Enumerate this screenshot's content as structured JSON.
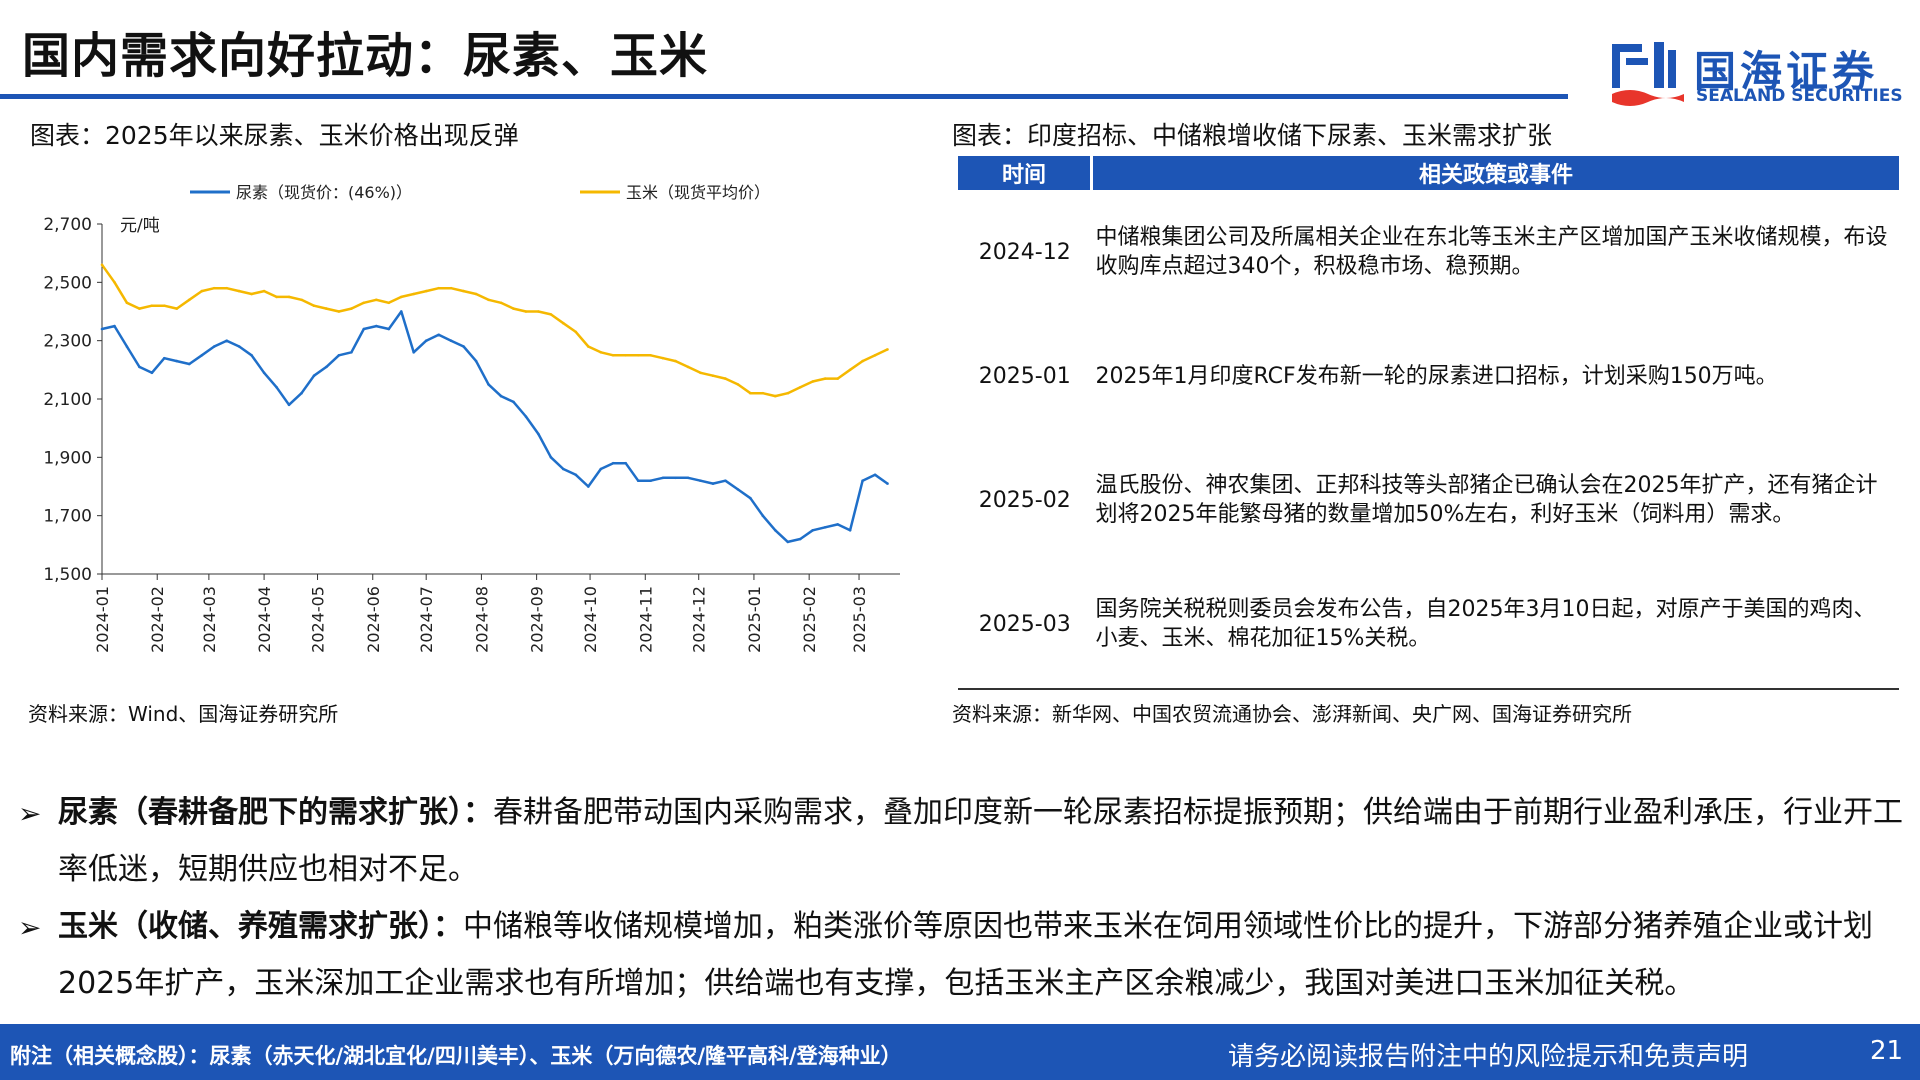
{
  "header": {
    "title": "国内需求向好拉动：尿素、玉米",
    "logo_cn": "国海证券",
    "logo_en": "SEALAND SECURITIES"
  },
  "left_figure": {
    "caption": "图表：2025年以来尿素、玉米价格出现反弹",
    "source": "资料来源：Wind、国海证券研究所"
  },
  "chart_data": {
    "type": "line",
    "ylabel": "元/吨",
    "ylim": [
      1500,
      2700
    ],
    "yticks": [
      1500,
      1700,
      1900,
      2100,
      2300,
      2500,
      2700
    ],
    "ytick_labels": [
      "1,500",
      "1,700",
      "1,900",
      "2,100",
      "2,300",
      "2,500",
      "2,700"
    ],
    "xticks": [
      "2024-01",
      "2024-02",
      "2024-03",
      "2024-04",
      "2024-05",
      "2024-06",
      "2024-07",
      "2024-08",
      "2024-09",
      "2024-10",
      "2024-11",
      "2024-12",
      "2025-01",
      "2025-02",
      "2025-03"
    ],
    "legend_position": "top",
    "series": [
      {
        "name": "尿素（现货价：(46%)）",
        "color": "#1f6fc9",
        "x": [
          "2024-01-01",
          "2024-01-08",
          "2024-01-15",
          "2024-01-22",
          "2024-01-29",
          "2024-02-05",
          "2024-02-12",
          "2024-02-19",
          "2024-02-26",
          "2024-03-04",
          "2024-03-11",
          "2024-03-18",
          "2024-03-25",
          "2024-04-01",
          "2024-04-08",
          "2024-04-15",
          "2024-04-22",
          "2024-04-29",
          "2024-05-06",
          "2024-05-13",
          "2024-05-20",
          "2024-05-27",
          "2024-06-03",
          "2024-06-10",
          "2024-06-17",
          "2024-06-24",
          "2024-07-01",
          "2024-07-08",
          "2024-07-15",
          "2024-07-22",
          "2024-07-29",
          "2024-08-05",
          "2024-08-12",
          "2024-08-19",
          "2024-08-26",
          "2024-09-02",
          "2024-09-09",
          "2024-09-16",
          "2024-09-23",
          "2024-09-30",
          "2024-10-07",
          "2024-10-14",
          "2024-10-21",
          "2024-10-28",
          "2024-11-04",
          "2024-11-11",
          "2024-11-18",
          "2024-11-25",
          "2024-12-02",
          "2024-12-09",
          "2024-12-16",
          "2024-12-23",
          "2024-12-30",
          "2025-01-06",
          "2025-01-13",
          "2025-01-20",
          "2025-01-27",
          "2025-02-03",
          "2025-02-10",
          "2025-02-17",
          "2025-02-24",
          "2025-03-03",
          "2025-03-10",
          "2025-03-17"
        ],
        "values": [
          2340,
          2350,
          2280,
          2210,
          2190,
          2240,
          2230,
          2220,
          2250,
          2280,
          2300,
          2280,
          2250,
          2190,
          2140,
          2080,
          2120,
          2180,
          2210,
          2250,
          2260,
          2340,
          2350,
          2340,
          2400,
          2260,
          2300,
          2320,
          2300,
          2280,
          2230,
          2150,
          2110,
          2090,
          2040,
          1980,
          1900,
          1860,
          1840,
          1800,
          1860,
          1880,
          1880,
          1820,
          1820,
          1830,
          1830,
          1830,
          1820,
          1810,
          1820,
          1790,
          1760,
          1700,
          1650,
          1610,
          1620,
          1650,
          1660,
          1670,
          1650,
          1820,
          1840,
          1810
        ]
      },
      {
        "name": "玉米（现货平均价）",
        "color": "#f5b800",
        "x": [
          "2024-01-01",
          "2024-01-08",
          "2024-01-15",
          "2024-01-22",
          "2024-01-29",
          "2024-02-05",
          "2024-02-12",
          "2024-02-19",
          "2024-02-26",
          "2024-03-04",
          "2024-03-11",
          "2024-03-18",
          "2024-03-25",
          "2024-04-01",
          "2024-04-08",
          "2024-04-15",
          "2024-04-22",
          "2024-04-29",
          "2024-05-06",
          "2024-05-13",
          "2024-05-20",
          "2024-05-27",
          "2024-06-03",
          "2024-06-10",
          "2024-06-17",
          "2024-06-24",
          "2024-07-01",
          "2024-07-08",
          "2024-07-15",
          "2024-07-22",
          "2024-07-29",
          "2024-08-05",
          "2024-08-12",
          "2024-08-19",
          "2024-08-26",
          "2024-09-02",
          "2024-09-09",
          "2024-09-16",
          "2024-09-23",
          "2024-09-30",
          "2024-10-07",
          "2024-10-14",
          "2024-10-21",
          "2024-10-28",
          "2024-11-04",
          "2024-11-11",
          "2024-11-18",
          "2024-11-25",
          "2024-12-02",
          "2024-12-09",
          "2024-12-16",
          "2024-12-23",
          "2024-12-30",
          "2025-01-06",
          "2025-01-13",
          "2025-01-20",
          "2025-01-27",
          "2025-02-03",
          "2025-02-10",
          "2025-02-17",
          "2025-02-24",
          "2025-03-03",
          "2025-03-10",
          "2025-03-17"
        ],
        "values": [
          2560,
          2500,
          2430,
          2410,
          2420,
          2420,
          2410,
          2440,
          2470,
          2480,
          2480,
          2470,
          2460,
          2470,
          2450,
          2450,
          2440,
          2420,
          2410,
          2400,
          2410,
          2430,
          2440,
          2430,
          2450,
          2460,
          2470,
          2480,
          2480,
          2470,
          2460,
          2440,
          2430,
          2410,
          2400,
          2400,
          2390,
          2360,
          2330,
          2280,
          2260,
          2250,
          2250,
          2250,
          2250,
          2240,
          2230,
          2210,
          2190,
          2180,
          2170,
          2150,
          2120,
          2120,
          2110,
          2120,
          2140,
          2160,
          2170,
          2170,
          2200,
          2230,
          2250,
          2270
        ]
      }
    ]
  },
  "right_figure": {
    "caption": "图表：印度招标、中储粮增收储下尿素、玉米需求扩张",
    "headers": [
      "时间",
      "相关政策或事件"
    ],
    "rows": [
      {
        "date": "2024-12",
        "event": "中储粮集团公司及所属相关企业在东北等玉米主产区增加国产玉米收储规模，布设收购库点超过340个，积极稳市场、稳预期。"
      },
      {
        "date": "2025-01",
        "event": "2025年1月印度RCF发布新一轮的尿素进口招标，计划采购150万吨。"
      },
      {
        "date": "2025-02",
        "event": "温氏股份、神农集团、正邦科技等头部猪企已确认会在2025年扩产，还有猪企计划将2025年能繁母猪的数量增加50%左右，利好玉米（饲料用）需求。"
      },
      {
        "date": "2025-03",
        "event": "国务院关税税则委员会发布公告，自2025年3月10日起，对原产于美国的鸡肉、小麦、玉米、棉花加征15%关税。"
      }
    ],
    "source": "资料来源：新华网、中国农贸流通协会、澎湃新闻、央广网、国海证券研究所"
  },
  "bullets": [
    {
      "marker": "➢",
      "heading": "尿素（春耕备肥下的需求扩张）：",
      "body": "春耕备肥带动国内采购需求，叠加印度新一轮尿素招标提振预期；供给端由于前期行业盈利承压，行业开工率低迷，短期供应也相对不足。"
    },
    {
      "marker": "➢",
      "heading": "玉米（收储、养殖需求扩张）：",
      "body": "中储粮等收储规模增加，粕类涨价等原因也带来玉米在饲用领域性价比的提升，下游部分猪养殖企业或计划2025年扩产，玉米深加工企业需求也有所增加；供给端也有支撑，包括玉米主产区余粮减少，我国对美进口玉米加征关税。"
    }
  ],
  "footer": {
    "note": "附注（相关概念股）：尿素（赤天化/湖北宜化/四川美丰）、玉米（万向德农/隆平高科/登海种业）",
    "disclaimer": "请务必阅读报告附注中的风险提示和免责声明",
    "page": "21"
  }
}
